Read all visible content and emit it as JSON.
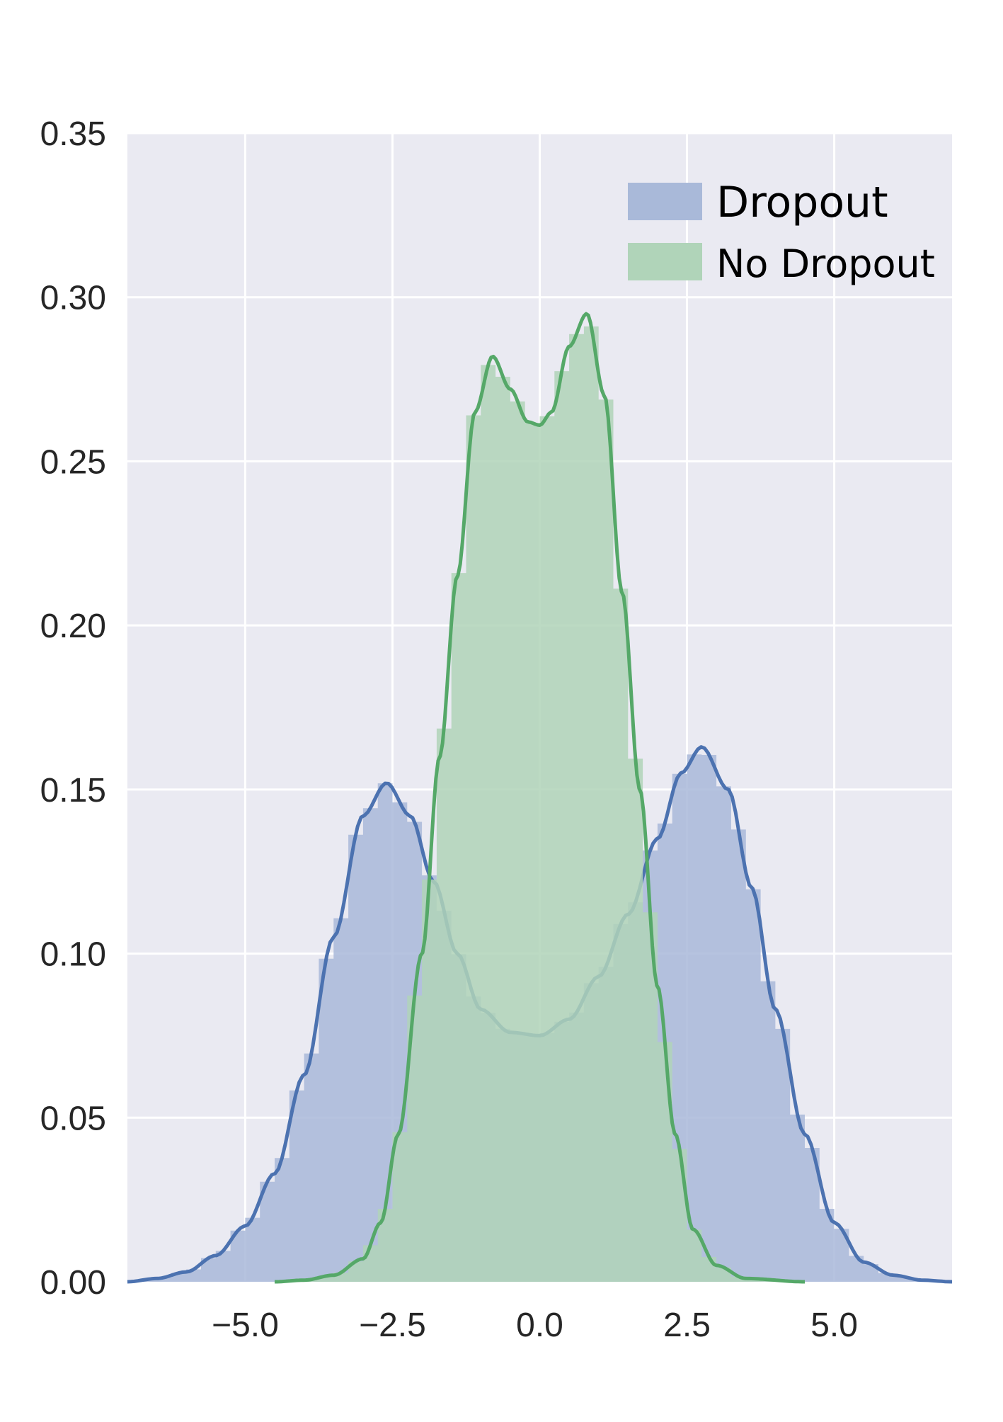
{
  "chart_data": {
    "type": "area",
    "title": "",
    "xlabel": "",
    "ylabel": "",
    "xlim": [
      -7.0,
      7.0
    ],
    "ylim": [
      0,
      0.35
    ],
    "grid": true,
    "legend_position": "top-right",
    "background_color": "#eaeaf2",
    "x_ticks": [
      -5.0,
      -2.5,
      0.0,
      2.5,
      5.0
    ],
    "x_tick_labels": [
      "−5.0",
      "−2.5",
      "0.0",
      "2.5",
      "5.0"
    ],
    "y_ticks": [
      0.0,
      0.05,
      0.1,
      0.15,
      0.2,
      0.25,
      0.3,
      0.35
    ],
    "y_tick_labels": [
      "0.00",
      "0.05",
      "0.10",
      "0.15",
      "0.20",
      "0.25",
      "0.30",
      "0.35"
    ],
    "legend": [
      {
        "label": "Dropout",
        "series": "Dropout"
      },
      {
        "label": "No Dropout",
        "series": "No Dropout"
      }
    ],
    "series": [
      {
        "name": "Dropout",
        "color": "#4c72b0",
        "fill_color": "#a9b9d9",
        "kde": [
          [
            -7.0,
            0.0
          ],
          [
            -6.5,
            0.001
          ],
          [
            -6.0,
            0.003
          ],
          [
            -5.5,
            0.008
          ],
          [
            -5.0,
            0.017
          ],
          [
            -4.5,
            0.033
          ],
          [
            -4.0,
            0.063
          ],
          [
            -3.5,
            0.105
          ],
          [
            -3.0,
            0.142
          ],
          [
            -2.6,
            0.152
          ],
          [
            -2.2,
            0.142
          ],
          [
            -1.8,
            0.122
          ],
          [
            -1.4,
            0.1
          ],
          [
            -1.0,
            0.083
          ],
          [
            -0.5,
            0.076
          ],
          [
            0.0,
            0.075
          ],
          [
            0.5,
            0.08
          ],
          [
            1.0,
            0.093
          ],
          [
            1.5,
            0.112
          ],
          [
            2.0,
            0.135
          ],
          [
            2.4,
            0.155
          ],
          [
            2.75,
            0.163
          ],
          [
            3.2,
            0.15
          ],
          [
            3.6,
            0.12
          ],
          [
            4.0,
            0.083
          ],
          [
            4.5,
            0.045
          ],
          [
            5.0,
            0.018
          ],
          [
            5.5,
            0.006
          ],
          [
            6.0,
            0.002
          ],
          [
            6.5,
            0.0005
          ],
          [
            7.0,
            0.0
          ]
        ]
      },
      {
        "name": "No Dropout",
        "color": "#55a868",
        "fill_color": "#b0d4b9",
        "kde": [
          [
            -4.5,
            0.0
          ],
          [
            -4.0,
            0.0005
          ],
          [
            -3.5,
            0.002
          ],
          [
            -3.0,
            0.007
          ],
          [
            -2.7,
            0.018
          ],
          [
            -2.4,
            0.045
          ],
          [
            -2.0,
            0.1
          ],
          [
            -1.7,
            0.16
          ],
          [
            -1.4,
            0.215
          ],
          [
            -1.1,
            0.265
          ],
          [
            -0.8,
            0.282
          ],
          [
            -0.5,
            0.272
          ],
          [
            -0.2,
            0.262
          ],
          [
            0.0,
            0.261
          ],
          [
            0.2,
            0.265
          ],
          [
            0.5,
            0.285
          ],
          [
            0.8,
            0.295
          ],
          [
            1.1,
            0.27
          ],
          [
            1.4,
            0.21
          ],
          [
            1.7,
            0.15
          ],
          [
            2.0,
            0.09
          ],
          [
            2.3,
            0.045
          ],
          [
            2.6,
            0.016
          ],
          [
            3.0,
            0.005
          ],
          [
            3.5,
            0.001
          ],
          [
            4.5,
            0.0
          ]
        ]
      }
    ]
  }
}
